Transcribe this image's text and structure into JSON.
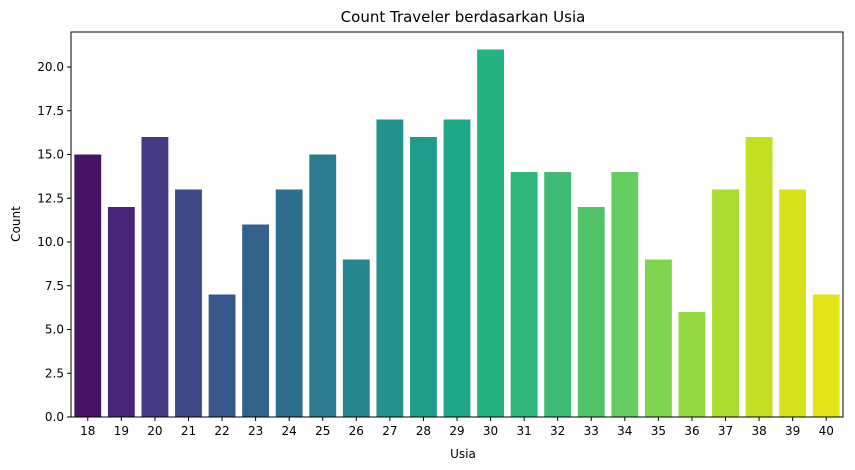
{
  "chart_data": {
    "type": "bar",
    "title": "Count Traveler berdasarkan Usia",
    "xlabel": "Usia",
    "ylabel": "Count",
    "ylim": [
      0,
      22
    ],
    "yticks": [
      "0.0",
      "2.5",
      "5.0",
      "7.5",
      "10.0",
      "12.5",
      "15.0",
      "17.5",
      "20.0"
    ],
    "categories": [
      "18",
      "19",
      "20",
      "21",
      "22",
      "23",
      "24",
      "25",
      "26",
      "27",
      "28",
      "29",
      "30",
      "31",
      "32",
      "33",
      "34",
      "35",
      "36",
      "37",
      "38",
      "39",
      "40"
    ],
    "values": [
      15,
      12,
      16,
      13,
      7,
      11,
      13,
      15,
      9,
      17,
      16,
      17,
      21,
      14,
      14,
      12,
      14,
      9,
      6,
      13,
      16,
      13,
      7
    ],
    "colors": [
      "#471365",
      "#482576",
      "#443983",
      "#3e4a89",
      "#38588c",
      "#33638d",
      "#2e6f8e",
      "#2b7b8e",
      "#27858e",
      "#23918c",
      "#1f9d8a",
      "#1fa887",
      "#24b27f",
      "#2eb67b",
      "#3fbc73",
      "#50c46a",
      "#66cc5d",
      "#7fd34e",
      "#94d840",
      "#aadc32",
      "#c2df23",
      "#d6e21a",
      "#e3e418"
    ],
    "grid": false,
    "legend": "none"
  }
}
